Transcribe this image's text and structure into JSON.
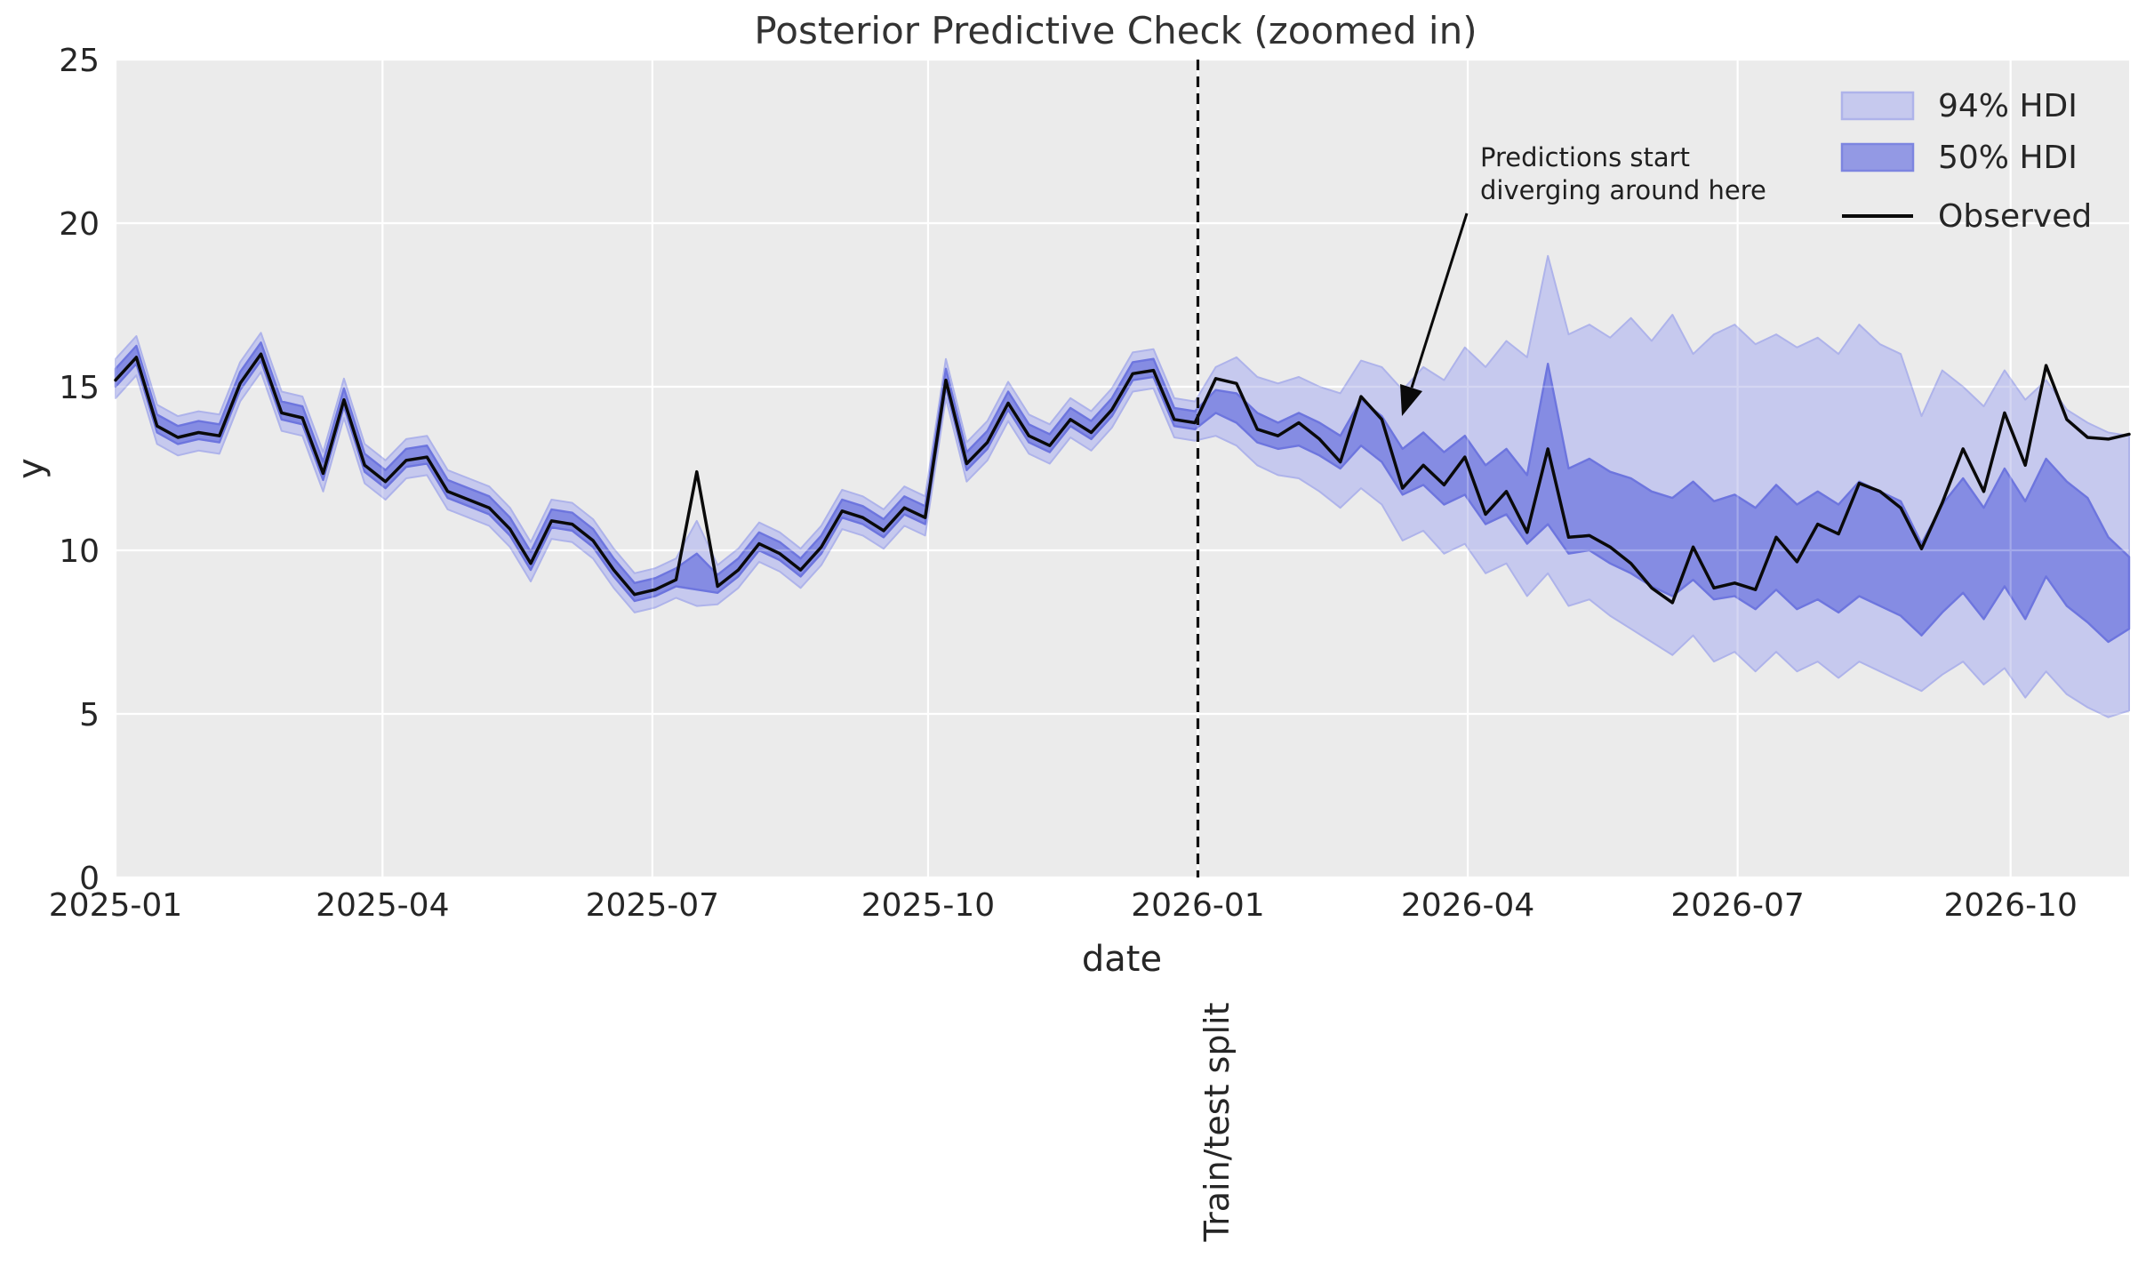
{
  "title": "Posterior Predictive Check (zoomed in)",
  "axes": {
    "xlabel": "date",
    "ylabel": "y",
    "xtick_labels": [
      "2025-01",
      "2025-04",
      "2025-07",
      "2025-10",
      "2026-01",
      "2026-04",
      "2026-07",
      "2026-10"
    ],
    "ytick_labels": [
      "0",
      "5",
      "10",
      "15",
      "20",
      "25"
    ]
  },
  "legend": {
    "items": [
      {
        "label": "94% HDI",
        "type": "patch"
      },
      {
        "label": "50% HDI",
        "type": "patch"
      },
      {
        "label": "Observed",
        "type": "line"
      }
    ]
  },
  "annotation": {
    "line1": "Predictions start",
    "line2": "diverging around here"
  },
  "split": {
    "label": "Train/test split"
  },
  "colors": {
    "plot_bg": "#ebebeb",
    "grid": "#ffffff",
    "hdi94_fill": "#c6c9ee",
    "hdi94_edge": "#aeb3ea",
    "hdi50_fill": "#858ce3",
    "hdi50_edge": "#6d75de",
    "hdi50_legend_fill": "#9399e4",
    "hdi50_legend_edge": "#7d85e0",
    "observed": "#0a0a0a",
    "split_line": "#111111",
    "text": "#262626"
  },
  "chart_data": {
    "type": "line",
    "title": "Posterior Predictive Check (zoomed in)",
    "xlabel": "date",
    "ylabel": "y",
    "x_unit": "weeks since 2025-01-01, weekly points",
    "ylim": [
      0,
      25
    ],
    "yticks": [
      0,
      5,
      10,
      15,
      20,
      25
    ],
    "xtick_weeks": [
      0,
      12.86,
      25.86,
      39.14,
      52.14,
      65.14,
      78.14,
      91.29
    ],
    "split_week": 52.14,
    "legend_position": "upper right",
    "grid": true,
    "observed": [
      15.2,
      15.9,
      13.8,
      13.45,
      13.6,
      13.5,
      15.1,
      16.0,
      14.2,
      14.05,
      12.35,
      14.6,
      12.6,
      12.1,
      12.75,
      12.85,
      11.8,
      11.55,
      11.3,
      10.65,
      9.6,
      10.9,
      10.8,
      10.3,
      9.4,
      8.65,
      8.8,
      9.1,
      12.4,
      8.9,
      9.4,
      10.2,
      9.9,
      9.4,
      10.1,
      11.2,
      11.0,
      10.6,
      11.3,
      11.0,
      15.2,
      12.65,
      13.3,
      14.5,
      13.5,
      13.2,
      14.0,
      13.6,
      14.3,
      15.4,
      15.5,
      14.0,
      13.9,
      15.25,
      15.1,
      13.7,
      13.5,
      13.9,
      13.4,
      12.7,
      14.7,
      14.0,
      11.9,
      12.6,
      12.0,
      12.85,
      11.1,
      11.8,
      10.55,
      13.1,
      10.4,
      10.45,
      10.1,
      9.6,
      8.85,
      8.4,
      10.1,
      8.85,
      9.0,
      8.8,
      10.4,
      9.65,
      10.8,
      10.5,
      12.05,
      11.8,
      11.3,
      10.05,
      11.45,
      13.1,
      11.8,
      14.2,
      12.6,
      15.65,
      14.0,
      13.45,
      13.4,
      13.55
    ],
    "hdi94": {
      "upper": [
        15.85,
        16.55,
        14.45,
        14.1,
        14.25,
        14.15,
        15.75,
        16.65,
        14.85,
        14.7,
        13.0,
        15.25,
        13.25,
        12.75,
        13.4,
        13.5,
        12.45,
        12.2,
        11.95,
        11.3,
        10.25,
        11.55,
        11.45,
        10.95,
        10.05,
        9.3,
        9.45,
        9.75,
        10.9,
        9.55,
        10.05,
        10.85,
        10.55,
        10.05,
        10.75,
        11.85,
        11.65,
        11.25,
        11.95,
        11.65,
        15.85,
        13.3,
        13.95,
        15.15,
        14.15,
        13.85,
        14.65,
        14.25,
        14.95,
        16.05,
        16.15,
        14.65,
        14.55,
        15.6,
        15.9,
        15.3,
        15.1,
        15.3,
        15.0,
        14.8,
        15.8,
        15.6,
        14.9,
        15.6,
        15.2,
        16.2,
        15.6,
        16.4,
        15.9,
        19.0,
        16.6,
        16.9,
        16.5,
        17.1,
        16.4,
        17.2,
        16.0,
        16.6,
        16.9,
        16.3,
        16.6,
        16.2,
        16.5,
        16.0,
        16.9,
        16.3,
        16.0,
        14.1,
        15.5,
        15.0,
        14.4,
        15.5,
        14.6,
        15.2,
        14.3,
        13.9,
        13.6,
        13.5
      ],
      "lower": [
        14.65,
        15.35,
        13.25,
        12.9,
        13.05,
        12.95,
        14.55,
        15.45,
        13.65,
        13.5,
        11.8,
        14.05,
        12.05,
        11.55,
        12.2,
        12.3,
        11.25,
        11.0,
        10.75,
        10.1,
        9.05,
        10.35,
        10.25,
        9.75,
        8.85,
        8.1,
        8.25,
        8.55,
        8.3,
        8.35,
        8.85,
        9.65,
        9.35,
        8.85,
        9.55,
        10.65,
        10.45,
        10.05,
        10.75,
        10.45,
        14.65,
        12.1,
        12.75,
        13.95,
        12.95,
        12.65,
        13.45,
        13.05,
        13.75,
        14.85,
        14.95,
        13.45,
        13.35,
        13.5,
        13.2,
        12.6,
        12.3,
        12.2,
        11.8,
        11.3,
        11.9,
        11.4,
        10.3,
        10.6,
        9.9,
        10.2,
        9.3,
        9.6,
        8.6,
        9.3,
        8.3,
        8.5,
        8.0,
        7.6,
        7.2,
        6.8,
        7.4,
        6.6,
        6.9,
        6.3,
        6.9,
        6.3,
        6.6,
        6.1,
        6.6,
        6.3,
        6.0,
        5.7,
        6.2,
        6.6,
        5.9,
        6.4,
        5.5,
        6.3,
        5.6,
        5.2,
        4.9,
        5.1
      ]
    },
    "hdi50": {
      "upper": [
        15.55,
        16.25,
        14.15,
        13.8,
        13.95,
        13.85,
        15.45,
        16.35,
        14.55,
        14.4,
        12.7,
        14.95,
        12.95,
        12.45,
        13.1,
        13.2,
        12.15,
        11.9,
        11.65,
        11.0,
        9.95,
        11.25,
        11.15,
        10.65,
        9.75,
        9.0,
        9.15,
        9.45,
        9.9,
        9.25,
        9.75,
        10.55,
        10.25,
        9.75,
        10.45,
        11.55,
        11.35,
        10.95,
        11.65,
        11.35,
        15.55,
        13.0,
        13.65,
        14.85,
        13.85,
        13.55,
        14.35,
        13.95,
        14.65,
        15.75,
        15.85,
        14.35,
        14.25,
        14.9,
        14.8,
        14.2,
        13.9,
        14.2,
        13.9,
        13.5,
        14.6,
        14.1,
        13.1,
        13.6,
        13.0,
        13.5,
        12.6,
        13.1,
        12.3,
        15.7,
        12.5,
        12.8,
        12.4,
        12.2,
        11.8,
        11.6,
        12.1,
        11.5,
        11.7,
        11.3,
        12.0,
        11.4,
        11.8,
        11.4,
        12.1,
        11.8,
        11.5,
        10.2,
        11.4,
        12.2,
        11.3,
        12.5,
        11.5,
        12.8,
        12.1,
        11.6,
        10.4,
        9.8
      ],
      "lower": [
        15.0,
        15.7,
        13.6,
        13.25,
        13.4,
        13.3,
        14.9,
        15.8,
        14.0,
        13.85,
        12.15,
        14.4,
        12.4,
        11.9,
        12.55,
        12.65,
        11.6,
        11.35,
        11.1,
        10.45,
        9.4,
        10.7,
        10.6,
        10.1,
        9.2,
        8.45,
        8.6,
        8.9,
        8.8,
        8.7,
        9.2,
        10.0,
        9.7,
        9.2,
        9.9,
        11.0,
        10.8,
        10.4,
        11.1,
        10.8,
        15.0,
        12.45,
        13.1,
        14.3,
        13.3,
        13.0,
        13.8,
        13.4,
        14.1,
        15.2,
        15.3,
        13.8,
        13.7,
        14.2,
        13.9,
        13.3,
        13.1,
        13.2,
        12.9,
        12.5,
        13.2,
        12.7,
        11.7,
        12.0,
        11.4,
        11.7,
        10.8,
        11.1,
        10.2,
        10.8,
        9.9,
        10.0,
        9.6,
        9.3,
        8.9,
        8.6,
        9.1,
        8.5,
        8.6,
        8.2,
        8.8,
        8.2,
        8.5,
        8.1,
        8.6,
        8.3,
        8.0,
        7.4,
        8.1,
        8.7,
        7.9,
        8.9,
        7.9,
        9.2,
        8.3,
        7.8,
        7.2,
        7.6
      ]
    }
  }
}
